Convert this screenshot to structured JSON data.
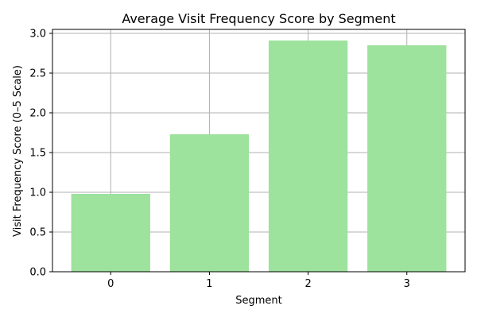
{
  "chart_data": {
    "type": "bar",
    "title": "Average Visit Frequency Score by Segment",
    "xlabel": "Segment",
    "ylabel": "Visit Frequency Score (0–5 Scale)",
    "categories": [
      "0",
      "1",
      "2",
      "3"
    ],
    "values": [
      0.98,
      1.73,
      2.91,
      2.85
    ],
    "ylim": [
      0,
      3.05
    ],
    "yticks": [
      "0.0",
      "0.5",
      "1.0",
      "1.5",
      "2.0",
      "2.5",
      "3.0"
    ],
    "grid": true,
    "bar_color": "#9de29d",
    "grid_color": "#b0b0b0"
  }
}
